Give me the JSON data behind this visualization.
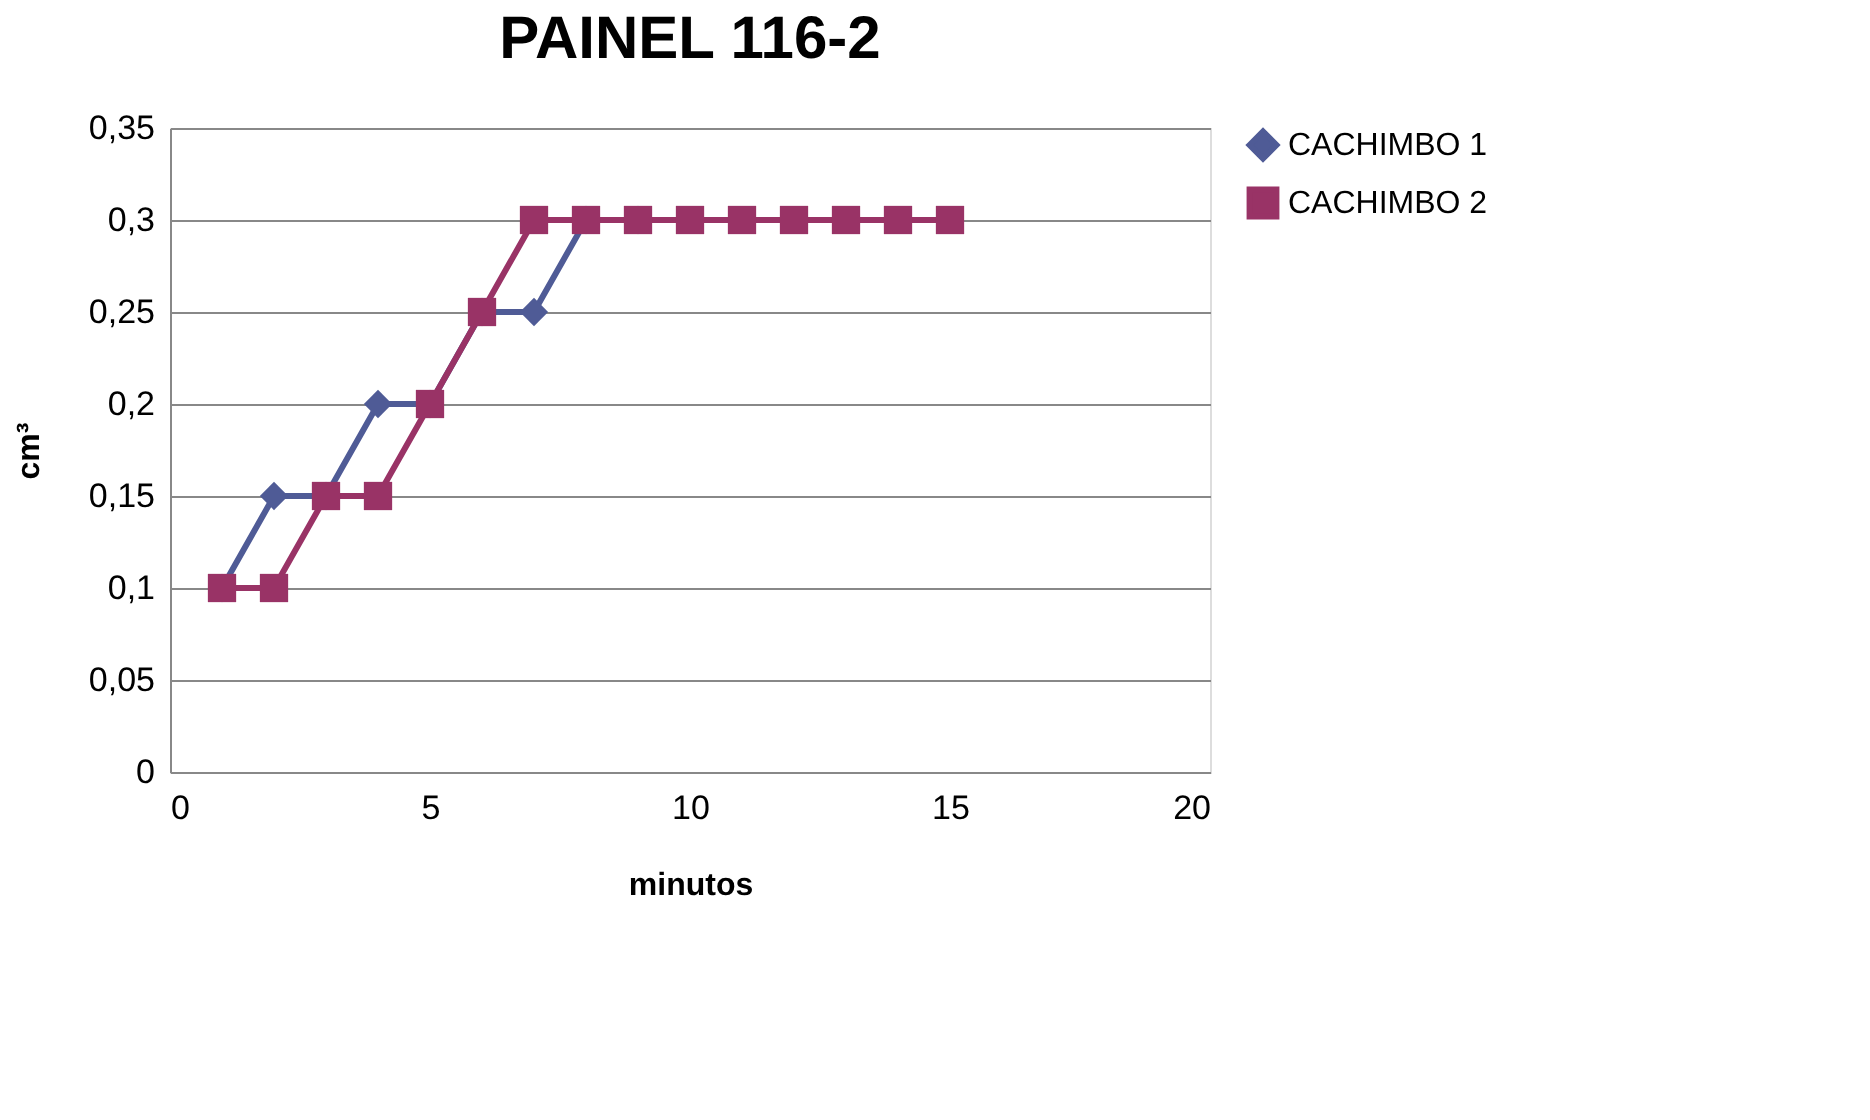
{
  "chart_data": {
    "type": "line",
    "title": "PAINEL 116-2",
    "xlabel": "minutos",
    "ylabel": "cm³",
    "x": [
      1,
      2,
      3,
      4,
      5,
      6,
      7,
      8,
      9,
      10,
      11,
      12,
      13,
      14,
      15
    ],
    "series": [
      {
        "name": "CACHIMBO 1",
        "color": "#4f5b96",
        "marker": "diamond",
        "values": [
          0.1,
          0.15,
          0.15,
          0.2,
          0.2,
          0.25,
          0.25,
          0.3,
          0.3,
          null,
          null,
          null,
          null,
          null,
          null
        ]
      },
      {
        "name": "CACHIMBO 2",
        "color": "#993366",
        "marker": "square",
        "values": [
          0.1,
          0.1,
          0.15,
          0.15,
          0.2,
          0.25,
          0.3,
          0.3,
          0.3,
          0.3,
          0.3,
          0.3,
          0.3,
          0.3,
          0.3
        ]
      }
    ],
    "xlim": [
      0,
      20
    ],
    "xticks": [
      0,
      5,
      10,
      15,
      20
    ],
    "ylim": [
      0,
      0.35
    ],
    "yticks": [
      0,
      {
        "value": 0.05,
        "label": "0,05"
      },
      {
        "value": 0.1,
        "label": "0,1"
      },
      {
        "value": 0.15,
        "label": "0,15"
      },
      {
        "value": 0.2,
        "label": "0,2"
      },
      {
        "value": 0.25,
        "label": "0,25"
      },
      {
        "value": 0.3,
        "label": "0,3"
      },
      {
        "value": 0.35,
        "label": "0,35"
      }
    ],
    "grid": "y",
    "legend": "right",
    "line_style": "solid"
  }
}
